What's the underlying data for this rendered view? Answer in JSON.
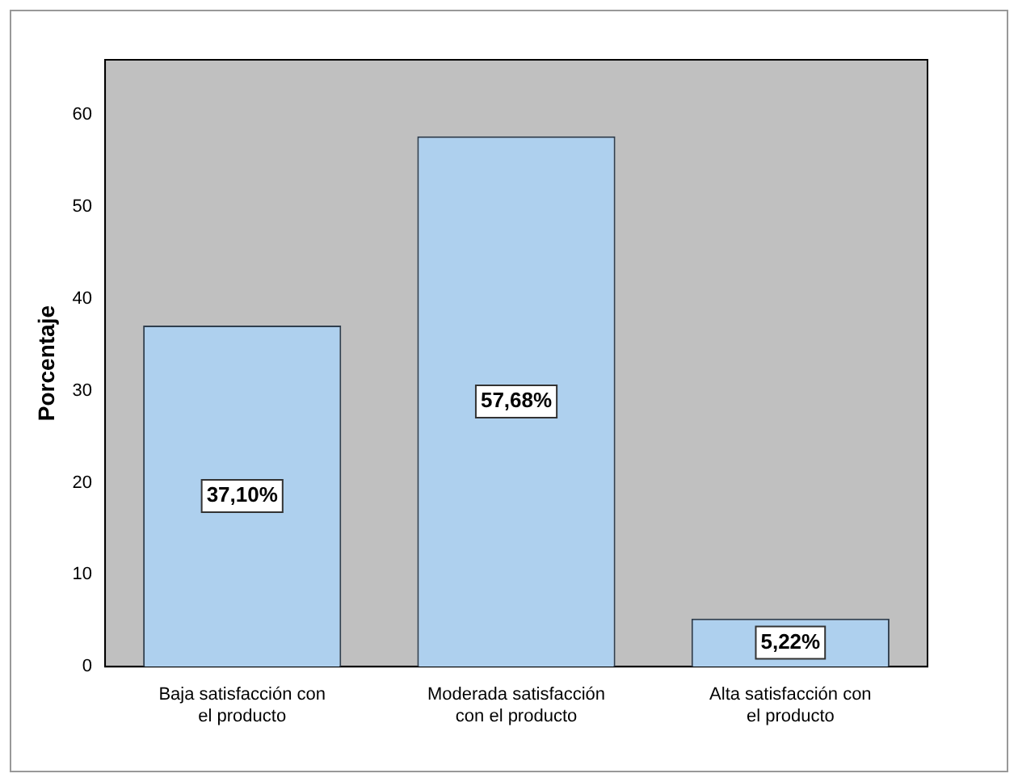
{
  "chart_data": {
    "type": "bar",
    "ylabel": "Porcentaje",
    "categories": [
      "Baja satisfacción con el producto",
      "Moderada satisfacción con el producto",
      "Alta satisfacción con el producto"
    ],
    "values": [
      37.1,
      57.68,
      5.22
    ],
    "value_labels": [
      "37,10%",
      "57,68%",
      "5,22%"
    ],
    "color": "#aed0ee",
    "ylim": [
      0,
      66
    ],
    "yticks": [
      0,
      10,
      20,
      30,
      40,
      50,
      60
    ],
    "grid": false,
    "legend": false
  }
}
